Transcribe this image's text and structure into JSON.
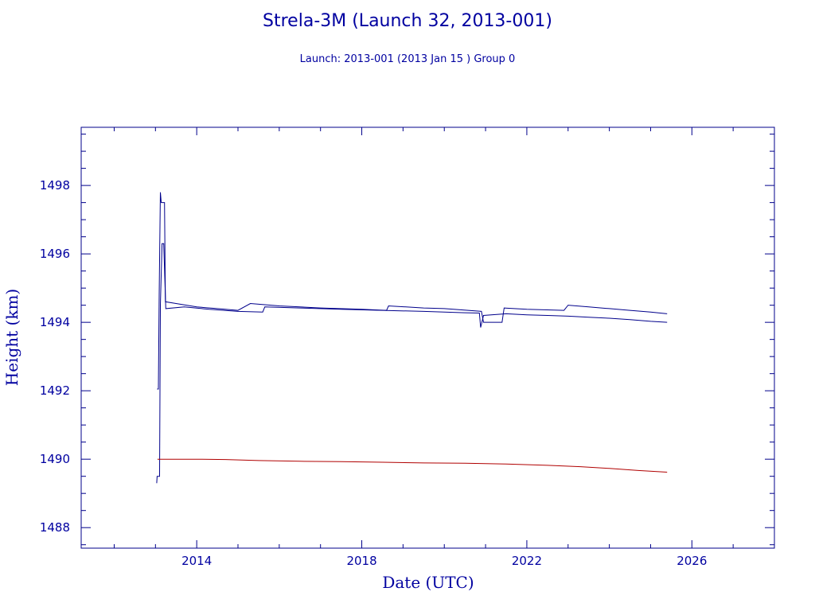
{
  "chart_data": {
    "type": "line",
    "title": "Strela-3M (Launch 32, 2013-001)",
    "subtitle": "Launch: 2013-001  (2013 Jan 15 )  Group 0",
    "xlabel": "Date (UTC)",
    "ylabel": "Height (km)",
    "xlim": [
      2011.2,
      2028.0
    ],
    "ylim": [
      1487.4,
      1499.7
    ],
    "xticks": [
      2014,
      2018,
      2022,
      2026
    ],
    "yticks": [
      1488,
      1490,
      1492,
      1494,
      1496,
      1498
    ],
    "grid": false,
    "legend": "none",
    "colors": {
      "axis": "#00008b",
      "text": "#0000a0",
      "apogee": "#00008b",
      "perigee": "#b00000"
    },
    "series": [
      {
        "points": [
          [
            2013.04,
            1492.05
          ],
          [
            2013.07,
            1492.05
          ],
          [
            2013.09,
            1494.8
          ],
          [
            2013.12,
            1497.8
          ],
          [
            2013.14,
            1497.5
          ],
          [
            2013.22,
            1497.5
          ],
          [
            2013.24,
            1494.6
          ],
          [
            2013.5,
            1494.55
          ],
          [
            2014.0,
            1494.45
          ],
          [
            2014.5,
            1494.4
          ],
          [
            2015.0,
            1494.35
          ],
          [
            2015.3,
            1494.55
          ],
          [
            2016.0,
            1494.48
          ],
          [
            2017.0,
            1494.42
          ],
          [
            2018.0,
            1494.38
          ],
          [
            2018.6,
            1494.35
          ],
          [
            2018.65,
            1494.48
          ],
          [
            2019.5,
            1494.42
          ],
          [
            2020.0,
            1494.4
          ],
          [
            2020.9,
            1494.32
          ],
          [
            2020.95,
            1494.0
          ],
          [
            2021.4,
            1494.0
          ],
          [
            2021.45,
            1494.42
          ],
          [
            2022.0,
            1494.38
          ],
          [
            2022.9,
            1494.35
          ],
          [
            2023.0,
            1494.5
          ],
          [
            2023.5,
            1494.45
          ],
          [
            2024.0,
            1494.4
          ],
          [
            2024.5,
            1494.35
          ],
          [
            2025.0,
            1494.3
          ],
          [
            2025.4,
            1494.25
          ]
        ]
      },
      {
        "points": [
          [
            2013.03,
            1489.3
          ],
          [
            2013.04,
            1489.5
          ],
          [
            2013.1,
            1489.5
          ],
          [
            2013.12,
            1494.5
          ],
          [
            2013.16,
            1496.3
          ],
          [
            2013.2,
            1496.3
          ],
          [
            2013.25,
            1494.4
          ],
          [
            2013.7,
            1494.45
          ],
          [
            2014.3,
            1494.38
          ],
          [
            2015.0,
            1494.32
          ],
          [
            2015.6,
            1494.3
          ],
          [
            2015.65,
            1494.45
          ],
          [
            2016.5,
            1494.42
          ],
          [
            2017.5,
            1494.38
          ],
          [
            2018.5,
            1494.35
          ],
          [
            2019.5,
            1494.32
          ],
          [
            2020.5,
            1494.28
          ],
          [
            2020.85,
            1494.27
          ],
          [
            2020.88,
            1493.85
          ],
          [
            2020.95,
            1494.2
          ],
          [
            2021.5,
            1494.25
          ],
          [
            2022.0,
            1494.22
          ],
          [
            2022.5,
            1494.2
          ],
          [
            2023.0,
            1494.18
          ],
          [
            2023.5,
            1494.15
          ],
          [
            2024.0,
            1494.12
          ],
          [
            2024.5,
            1494.08
          ],
          [
            2025.0,
            1494.03
          ],
          [
            2025.4,
            1494.0
          ]
        ]
      },
      {
        "points": [
          [
            2013.05,
            1490.0
          ],
          [
            2013.5,
            1490.0
          ],
          [
            2014.0,
            1490.0
          ],
          [
            2014.7,
            1489.99
          ],
          [
            2015.5,
            1489.96
          ],
          [
            2016.5,
            1489.94
          ],
          [
            2017.5,
            1489.93
          ],
          [
            2018.5,
            1489.91
          ],
          [
            2019.5,
            1489.89
          ],
          [
            2020.5,
            1489.88
          ],
          [
            2021.5,
            1489.86
          ],
          [
            2022.5,
            1489.82
          ],
          [
            2023.3,
            1489.78
          ],
          [
            2024.0,
            1489.73
          ],
          [
            2024.7,
            1489.67
          ],
          [
            2025.4,
            1489.62
          ]
        ]
      }
    ]
  }
}
